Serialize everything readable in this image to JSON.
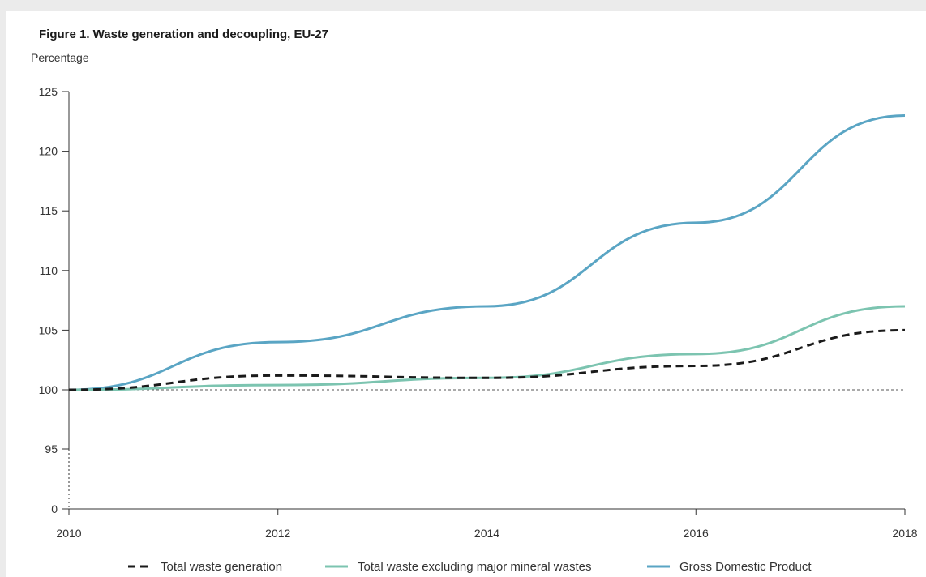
{
  "chart_data": {
    "type": "line",
    "title": "Figure 1. Waste generation and decoupling, EU-27",
    "ylabel": "Percentage",
    "xlabel": "",
    "x": [
      2010,
      2012,
      2014,
      2016,
      2018
    ],
    "x_ticks": [
      "2010",
      "2012",
      "2014",
      "2016",
      "2018"
    ],
    "y_ticks": [
      "125",
      "120",
      "115",
      "110",
      "105",
      "100",
      "95",
      "0"
    ],
    "ylim": [
      95,
      125
    ],
    "axis_break": "broken y-axis between 95 and 0",
    "reference_line": 100,
    "grid": false,
    "legend_position": "bottom",
    "series": [
      {
        "name": "Total waste generation",
        "values": [
          100,
          101.2,
          101,
          102,
          105
        ],
        "color": "#1a1a1a",
        "style": "dashed"
      },
      {
        "name": "Total waste excluding major mineral wastes",
        "values": [
          100,
          100.4,
          101,
          103,
          107
        ],
        "color": "#7cc4b0",
        "style": "solid"
      },
      {
        "name": "Gross Domestic Product",
        "values": [
          100,
          104,
          107,
          114,
          123
        ],
        "color": "#5aa5c4",
        "style": "solid"
      }
    ]
  }
}
